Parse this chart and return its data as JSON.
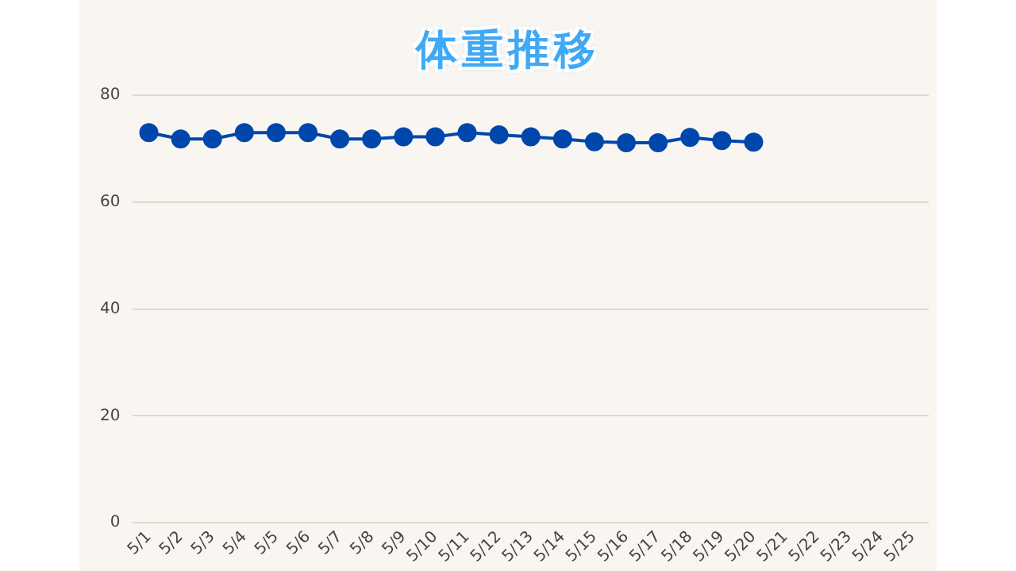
{
  "chart_data": {
    "type": "line",
    "title": "体重推移",
    "categories": [
      "5/1",
      "5/2",
      "5/3",
      "5/4",
      "5/5",
      "5/6",
      "5/7",
      "5/8",
      "5/9",
      "5/10",
      "5/11",
      "5/12",
      "5/13",
      "5/14",
      "5/15",
      "5/16",
      "5/17",
      "5/18",
      "5/19",
      "5/20",
      "5/21",
      "5/22",
      "5/23",
      "5/24",
      "5/25"
    ],
    "series": [
      {
        "color": "#0047ab",
        "values": [
          73.0,
          71.8,
          71.8,
          73.0,
          73.0,
          73.0,
          71.8,
          71.8,
          72.2,
          72.2,
          73.0,
          72.6,
          72.2,
          71.8,
          71.3,
          71.1,
          71.1,
          72.1,
          71.5,
          71.2,
          null,
          null,
          null,
          null,
          null
        ]
      }
    ],
    "ylim": [
      0,
      80
    ],
    "yticks": [
      0,
      20,
      40,
      60,
      80
    ],
    "grid": "y",
    "legend": false,
    "marker": "circle",
    "line_style": "solid"
  }
}
